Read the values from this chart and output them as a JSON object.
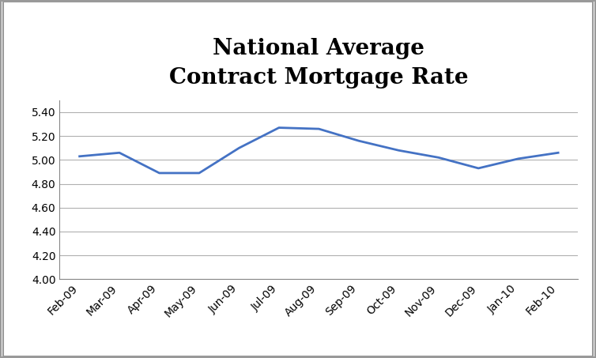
{
  "title": "National Average\nContract Mortgage Rate",
  "x_labels": [
    "Feb-09",
    "Mar-09",
    "Apr-09",
    "May-09",
    "Jun-09",
    "Jul-09",
    "Aug-09",
    "Sep-09",
    "Oct-09",
    "Nov-09",
    "Dec-09",
    "Jan-10",
    "Feb-10"
  ],
  "y_values": [
    5.03,
    5.06,
    4.89,
    4.89,
    5.1,
    5.27,
    5.26,
    5.16,
    5.08,
    5.02,
    4.93,
    5.01,
    5.06
  ],
  "ylim": [
    4.0,
    5.5
  ],
  "yticks": [
    4.0,
    4.2,
    4.4,
    4.6,
    4.8,
    5.0,
    5.2,
    5.4
  ],
  "line_color": "#4472C4",
  "line_width": 2.0,
  "background_color": "#ffffff",
  "grid_color": "#b0b0b0",
  "title_fontsize": 20,
  "title_fontweight": "bold",
  "tick_label_fontsize": 10,
  "border_color": "#888888",
  "outer_border_color": "#999999"
}
